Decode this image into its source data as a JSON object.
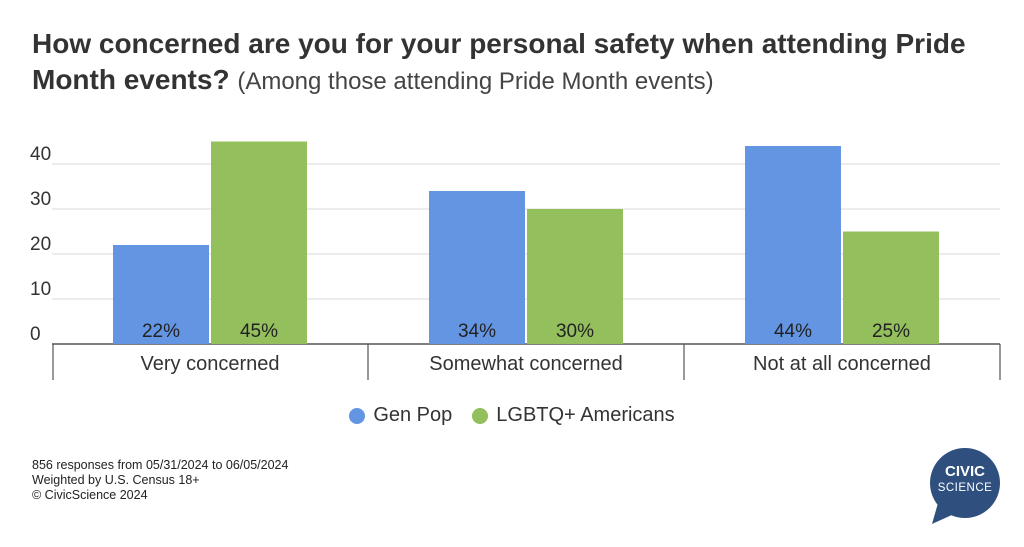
{
  "title": {
    "main": "How concerned are you for your personal safety when attending Pride Month events?",
    "sub": "(Among those attending Pride Month events)"
  },
  "chart_data": {
    "type": "bar",
    "categories": [
      "Very concerned",
      "Somewhat concerned",
      "Not at all concerned"
    ],
    "series": [
      {
        "name": "Gen Pop",
        "values": [
          22,
          34,
          44
        ],
        "labels": [
          "22%",
          "34%",
          "44%"
        ],
        "color": "#6495e2"
      },
      {
        "name": "LGBTQ+ Americans",
        "values": [
          45,
          30,
          25
        ],
        "labels": [
          "45%",
          "30%",
          "25%"
        ],
        "color": "#93bf5c"
      }
    ],
    "yticks": [
      "0",
      "10",
      "20",
      "30",
      "40"
    ],
    "ylim": [
      0,
      48
    ],
    "grid": true,
    "legend": "bottom-center"
  },
  "footer": {
    "line1": "856 responses from 05/31/2024 to 06/05/2024",
    "line2": "Weighted by U.S. Census 18+",
    "line3": "© CivicScience 2024"
  },
  "logo": {
    "line1": "CIVIC",
    "line2": "SCIENCE",
    "color": "#2f4f7f"
  }
}
